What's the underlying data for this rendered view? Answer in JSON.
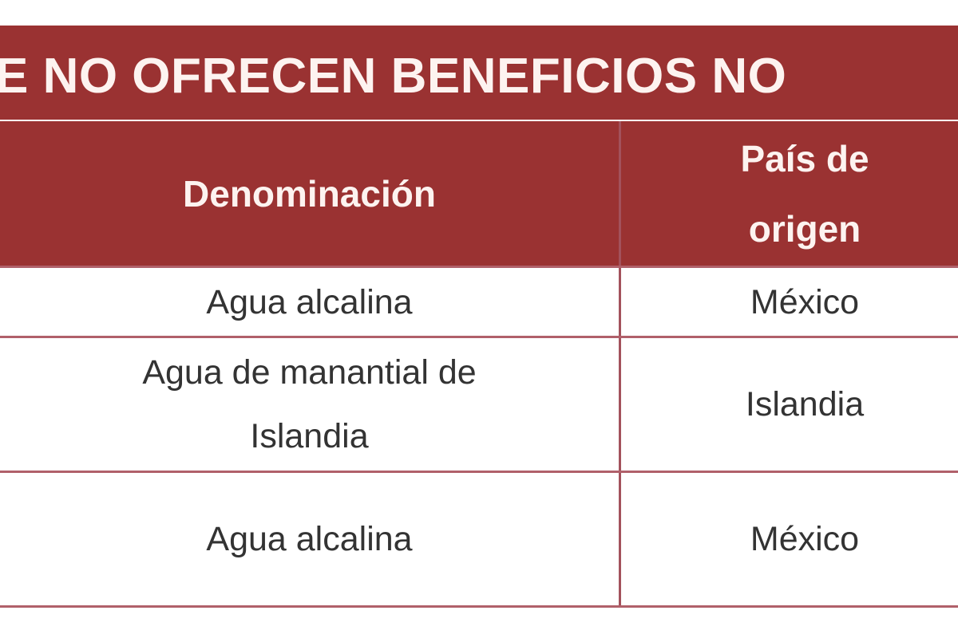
{
  "title": "E NO OFRECEN BENEFICIOS NO",
  "table": {
    "headers": [
      "Denominación",
      "País de origen"
    ],
    "rows": [
      [
        "Agua alcalina",
        "México"
      ],
      [
        "Agua de manantial de Islandia",
        "Islandia"
      ],
      [
        "Agua alcalina",
        "México"
      ]
    ]
  },
  "colors": {
    "header_bg": "#9a3232",
    "border": "#b0606a"
  }
}
